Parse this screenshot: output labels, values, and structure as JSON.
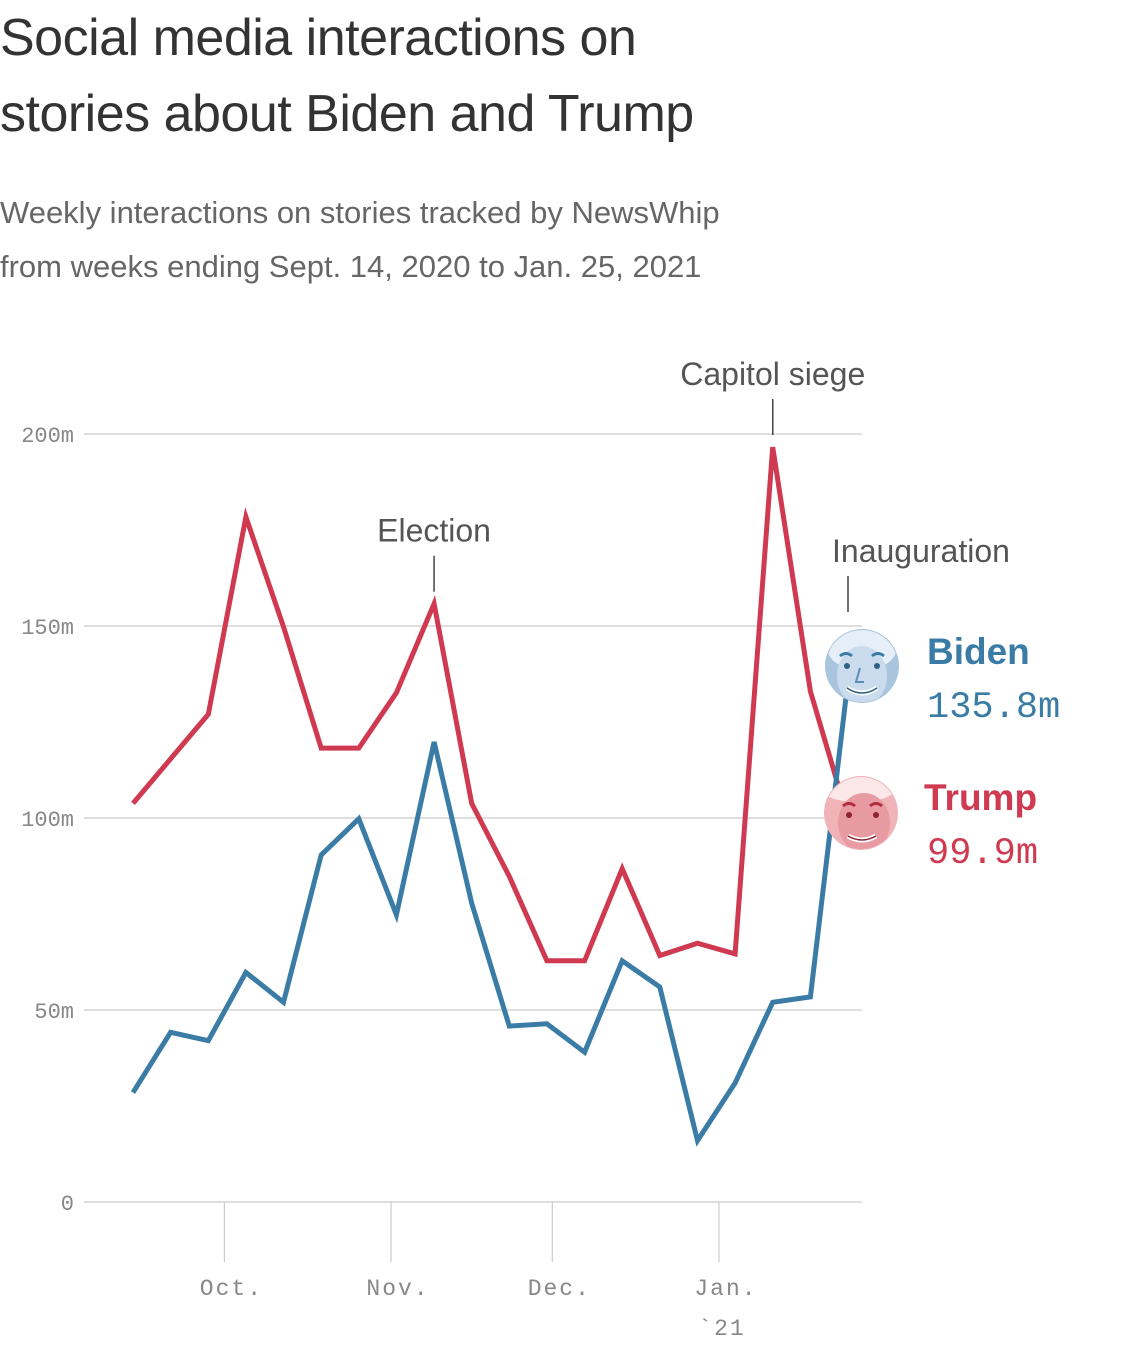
{
  "header": {
    "title_line1": "Social media interactions on",
    "title_line2": "stories about Biden and Trump",
    "subtitle_line1": "Weekly interactions on stories tracked by NewsWhip",
    "subtitle_line2": "from weeks ending Sept. 14, 2020 to Jan. 25, 2021"
  },
  "colors": {
    "biden": "#3a7ca5",
    "trump": "#cf3a50",
    "grid": "#cccccc",
    "axis_text": "#888888"
  },
  "chart_data": {
    "type": "line",
    "x": [
      "2020-09-14",
      "2020-09-21",
      "2020-09-28",
      "2020-10-05",
      "2020-10-12",
      "2020-10-19",
      "2020-10-26",
      "2020-11-02",
      "2020-11-09",
      "2020-11-16",
      "2020-11-23",
      "2020-11-30",
      "2020-12-07",
      "2020-12-14",
      "2020-12-21",
      "2020-12-28",
      "2021-01-04",
      "2021-01-11",
      "2021-01-18",
      "2021-01-25"
    ],
    "series": [
      {
        "name": "Biden",
        "key": "biden",
        "values": [
          28.5,
          44.2,
          42.0,
          59.8,
          52.0,
          90.4,
          99.8,
          74.8,
          119.8,
          77.8,
          45.8,
          46.4,
          39.0,
          62.8,
          56.0,
          16.0,
          31.0,
          52.0,
          53.4,
          135.8
        ]
      },
      {
        "name": "Trump",
        "key": "trump",
        "values": [
          103.8,
          115.4,
          127.0,
          178.4,
          149.8,
          118.2,
          118.2,
          132.6,
          155.8,
          103.8,
          84.8,
          62.8,
          62.8,
          86.8,
          64.2,
          67.4,
          64.6,
          196.6,
          133.0,
          99.9
        ]
      }
    ],
    "end_labels": {
      "biden": "135.8m",
      "trump": "99.9m"
    },
    "ylim": [
      0,
      200
    ],
    "y_ticks": [
      {
        "value": 0,
        "label": "0"
      },
      {
        "value": 50,
        "label": "50m"
      },
      {
        "value": 100,
        "label": "100m"
      },
      {
        "value": 150,
        "label": "150m"
      },
      {
        "value": 200,
        "label": "200m"
      }
    ],
    "x_ticks": [
      {
        "date": "2020-10-01",
        "label": "Oct."
      },
      {
        "date": "2020-11-01",
        "label": "Nov."
      },
      {
        "date": "2020-12-01",
        "label": "Dec."
      },
      {
        "date": "2021-01-01",
        "label": "Jan.",
        "sublabel": "`21"
      }
    ],
    "annotations": [
      {
        "date": "2020-11-09",
        "text": "Election",
        "series": "trump"
      },
      {
        "date": "2021-01-11",
        "text": "Capitol siege",
        "series": "trump"
      },
      {
        "date": "2021-01-25",
        "text": "Inauguration",
        "series": "biden"
      }
    ],
    "grid": true,
    "xlabel": "",
    "ylabel": ""
  }
}
